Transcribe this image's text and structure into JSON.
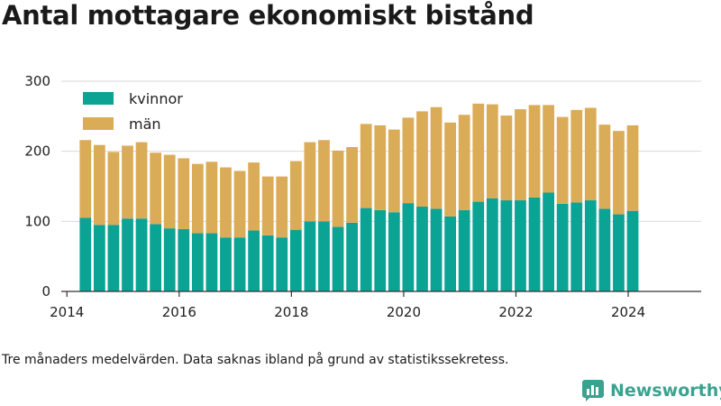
{
  "title": "Antal mottagare ekonomiskt bistånd",
  "footnote": "Tre månaders medelvärden. Data saknas ibland på grund av statistikssekretess.",
  "brand": {
    "name": "Newsworthy",
    "color": "#3aa38f"
  },
  "chart_data": {
    "type": "bar",
    "stacked": true,
    "grid": "horizontal",
    "legend_position": "top-left",
    "xlim": [
      2013.9,
      2025.3
    ],
    "ylim": [
      0,
      300
    ],
    "yticks": [
      0,
      100,
      200,
      300
    ],
    "xticks": [
      2014,
      2016,
      2018,
      2020,
      2022,
      2024
    ],
    "x": [
      2014.33,
      2014.58,
      2014.83,
      2015.08,
      2015.33,
      2015.58,
      2015.83,
      2016.08,
      2016.33,
      2016.58,
      2016.83,
      2017.08,
      2017.33,
      2017.58,
      2017.83,
      2018.08,
      2018.33,
      2018.58,
      2018.83,
      2019.08,
      2019.33,
      2019.58,
      2019.83,
      2020.08,
      2020.33,
      2020.58,
      2020.83,
      2021.08,
      2021.33,
      2021.58,
      2021.83,
      2022.08,
      2022.33,
      2022.58,
      2022.83,
      2023.08,
      2023.33,
      2023.58,
      2023.83,
      2024.08
    ],
    "series": [
      {
        "name": "kvinnor",
        "color": "#0aa394",
        "values": [
          105,
          95,
          95,
          104,
          104,
          96,
          90,
          89,
          83,
          83,
          77,
          77,
          87,
          80,
          77,
          88,
          100,
          100,
          92,
          98,
          119,
          116,
          113,
          126,
          121,
          118,
          107,
          116,
          128,
          133,
          130,
          130,
          134,
          141,
          125,
          127,
          130,
          118,
          110,
          115
        ]
      },
      {
        "name": "män",
        "color": "#dbac58",
        "values": [
          111,
          114,
          104,
          104,
          109,
          102,
          105,
          101,
          99,
          102,
          100,
          95,
          97,
          84,
          87,
          98,
          113,
          116,
          109,
          108,
          120,
          121,
          118,
          122,
          136,
          145,
          134,
          136,
          140,
          134,
          121,
          130,
          132,
          125,
          124,
          132,
          132,
          120,
          119,
          122
        ]
      }
    ]
  }
}
